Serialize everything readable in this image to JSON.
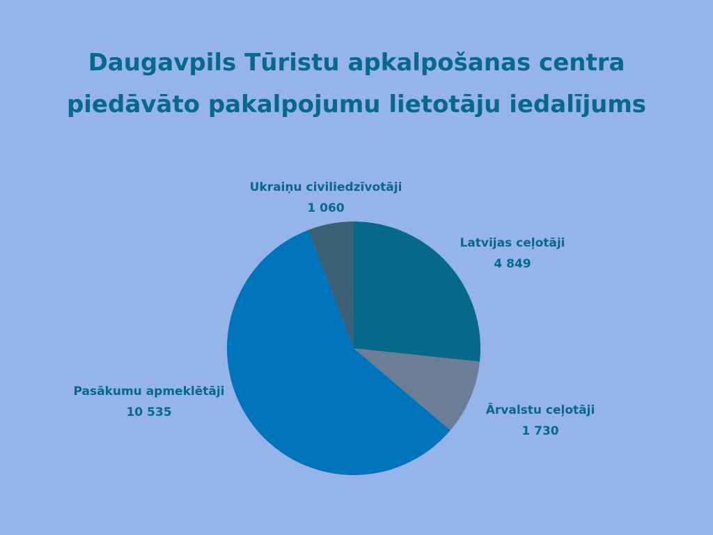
{
  "colors": {
    "background": "#94b4ea",
    "title": "#06688e",
    "label": "#06688e"
  },
  "chart_data": {
    "type": "pie",
    "title_lines": [
      "Daugavpils Tūristu apkalpošanas centra",
      "piedāvāto pakalpojumu lietotāju iedalījums"
    ],
    "slices": [
      {
        "label": "Latvijas ceļotāji",
        "value": 4849,
        "display": "4 849",
        "color": "#06698a"
      },
      {
        "label": "Ārvalstu ceļotāji",
        "value": 1730,
        "display": "1 730",
        "color": "#6b7e95"
      },
      {
        "label": "Pasākumu apmeklētāji",
        "value": 10535,
        "display": "10 535",
        "color": "#0074bb"
      },
      {
        "label": "Ukraiņu civiliedzīvotāji",
        "value": 1060,
        "display": "1 060",
        "color": "#3b5f74"
      }
    ],
    "start": "12 o'clock",
    "direction": "clockwise",
    "legend": "none",
    "labels": "outside, name and value"
  }
}
